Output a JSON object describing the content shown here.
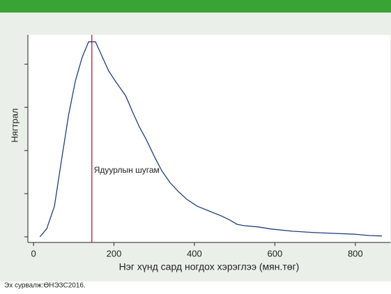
{
  "chart_data": {
    "type": "line",
    "ylabel": "Нягтрал",
    "xlabel": "Нэг хүнд сард ногдох хэрэглээ (мян.төг)",
    "source": "Эх сурвалж:ӨНЭЗС2016.",
    "x": [
      16,
      33,
      52,
      69,
      87,
      104,
      121,
      137,
      154,
      170,
      187,
      204,
      229,
      246,
      263,
      280,
      301,
      319,
      339,
      360,
      381,
      407,
      436,
      468,
      488,
      506,
      523,
      558,
      592,
      644,
      696,
      748,
      800,
      835,
      866
    ],
    "series": [
      {
        "color": "#1f3f7a",
        "values": [
          0,
          0.00019,
          0.00071,
          0.00174,
          0.00281,
          0.00361,
          0.00416,
          0.00452,
          0.00452,
          0.00419,
          0.00384,
          0.0036,
          0.00327,
          0.0029,
          0.00255,
          0.00226,
          0.00185,
          0.00153,
          0.00126,
          0.00105,
          0.00087,
          0.00071,
          0.0006,
          0.00048,
          0.00039,
          0.00029,
          0.00026,
          0.00023,
          0.00018,
          0.00013,
          0.0001,
          8e-05,
          6e-05,
          3e-05,
          2e-05
        ]
      }
    ],
    "xlim": [
      -14,
      887
    ],
    "xticks": [
      0,
      200,
      400,
      600,
      800
    ],
    "ylim": [
      -0.00013,
      0.00468
    ],
    "yticks": [
      0,
      0.001,
      0.002,
      0.003,
      0.004
    ],
    "vline": {
      "x": 145,
      "color": "#c0143c",
      "label": "Ядуурлын шугам"
    }
  }
}
